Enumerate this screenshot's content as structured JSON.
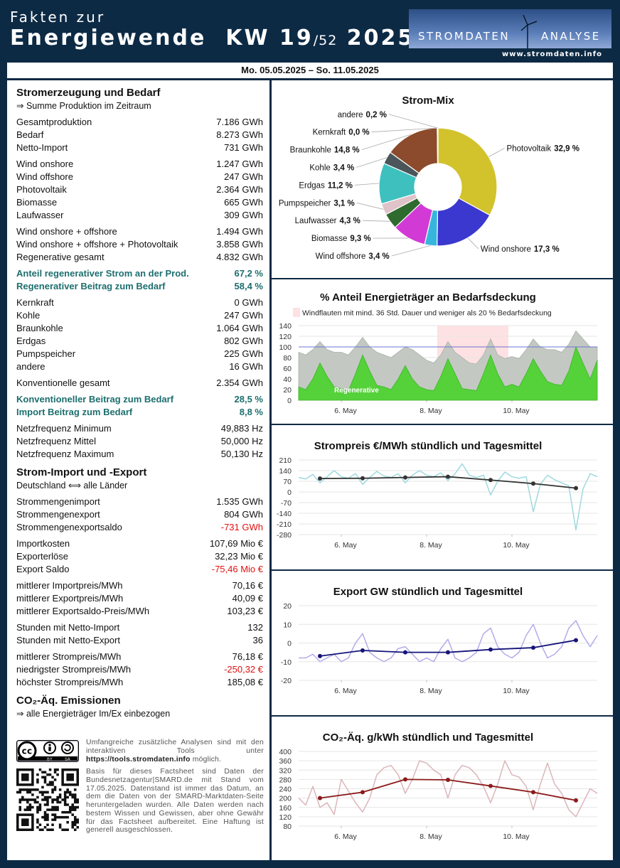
{
  "header": {
    "title_line1": "Fakten zur",
    "title_line2": "Energiewende",
    "week": "KW 19",
    "week_total": "/52",
    "year": "2025",
    "logo_left": "STROMDATEN",
    "logo_right": "ANALYSE",
    "url": "www.stromdaten.info"
  },
  "date_range": "Mo. 05.05.2025 – So. 11.05.2025",
  "left": {
    "sections": [
      {
        "title": "Stromerzeugung und Bedarf",
        "subtitle": "⇒ Summe Produktion im Zeitraum",
        "groups": [
          {
            "rows": [
              {
                "label": "Gesamtproduktion",
                "value": "7.186 GWh"
              },
              {
                "label": "Bedarf",
                "value": "8.273 GWh"
              },
              {
                "label": "Netto-Import",
                "value": "731 GWh"
              }
            ]
          },
          {
            "rows": [
              {
                "label": "Wind onshore",
                "value": "1.247 GWh"
              },
              {
                "label": "Wind offshore",
                "value": "247 GWh"
              },
              {
                "label": "Photovoltaik",
                "value": "2.364 GWh"
              },
              {
                "label": "Biomasse",
                "value": "665 GWh"
              },
              {
                "label": "Laufwasser",
                "value": "309 GWh"
              }
            ]
          },
          {
            "rows": [
              {
                "label": "Wind onshore + offshore",
                "value": "1.494 GWh"
              },
              {
                "label": "Wind onshore + offshore + Photovoltaik",
                "value": "3.858 GWh"
              },
              {
                "label": "Regenerative gesamt",
                "value": "4.832 GWh"
              }
            ]
          },
          {
            "color": "#1d6e6e",
            "rows": [
              {
                "label": "Anteil regenerativer Strom an der Prod.",
                "value": "67,2 %"
              },
              {
                "label": "Regenerativer Beitrag zum Bedarf",
                "value": "58,4 %"
              }
            ]
          },
          {
            "rows": [
              {
                "label": "Kernkraft",
                "value": "0 GWh"
              },
              {
                "label": "Kohle",
                "value": "247 GWh"
              },
              {
                "label": "Braunkohle",
                "value": "1.064 GWh"
              },
              {
                "label": "Erdgas",
                "value": "802 GWh"
              },
              {
                "label": "Pumpspeicher",
                "value": "225 GWh"
              },
              {
                "label": "andere",
                "value": "16 GWh"
              }
            ]
          },
          {
            "rows": [
              {
                "label": "Konventionelle gesamt",
                "value": "2.354 GWh"
              }
            ]
          },
          {
            "color": "#1d6e6e",
            "rows": [
              {
                "label": "Konventioneller Beitrag zum Bedarf",
                "value": "28,5 %"
              },
              {
                "label": "Import Beitrag zum Bedarf",
                "value": "8,8 %"
              }
            ]
          },
          {
            "rows": [
              {
                "label": "Netzfrequenz Minimum",
                "value": "49,883 Hz"
              },
              {
                "label": "Netzfrequenz Mittel",
                "value": "50,000 Hz"
              },
              {
                "label": "Netzfrequenz Maximum",
                "value": "50,130 Hz"
              }
            ]
          }
        ]
      },
      {
        "title": "Strom-Import und -Export",
        "subtitle": "Deutschland ⟺ alle Länder",
        "groups": [
          {
            "rows": [
              {
                "label": "Strommengenimport",
                "value": "1.535 GWh"
              },
              {
                "label": "Strommengenexport",
                "value": "804 GWh"
              },
              {
                "label": "Strommengenexportsaldo",
                "value": "-731 GWh",
                "value_color": "#e01010"
              }
            ]
          },
          {
            "rows": [
              {
                "label": "Importkosten",
                "value": "107,69 Mio €"
              },
              {
                "label": "Exporterlöse",
                "value": "32,23 Mio €"
              },
              {
                "label": "Export Saldo",
                "value": "-75,46 Mio €",
                "value_color": "#e01010"
              }
            ]
          },
          {
            "rows": [
              {
                "label": "mittlerer Importpreis/MWh",
                "value": "70,16 €"
              },
              {
                "label": "mittlerer Exportpreis/MWh",
                "value": "40,09 €"
              },
              {
                "label": "mittlerer Exportsaldo-Preis/MWh",
                "value": "103,23 €"
              }
            ]
          },
          {
            "rows": [
              {
                "label": "Stunden mit Netto-Import",
                "value": "132"
              },
              {
                "label": "Stunden mit Netto-Export",
                "value": "36"
              }
            ]
          },
          {
            "rows": [
              {
                "label": "mittlerer Strompreis/MWh",
                "value": "76,18 €"
              },
              {
                "label": "niedrigster Strompreis/MWh",
                "value": "-250,32 €",
                "value_color": "#e01010"
              },
              {
                "label": "höchster Strompreis/MWh",
                "value": "185,08 €"
              }
            ]
          }
        ]
      },
      {
        "title": "CO₂-Äq. Emissionen",
        "subtitle": "⇒ alle Energieträger Im/Ex einbezogen",
        "groups": []
      }
    ]
  },
  "footer": {
    "license_badge": [
      "BY",
      "SA"
    ],
    "tools_text": "Umfangreiche zusätzliche Analysen sind mit den interaktiven Tools unter",
    "tools_link": "https://tools.stromdaten.info",
    "tools_end": "möglich.",
    "disclaimer": "Basis für dieses Factsheet sind Daten der Bundesnetzagentur|SMARD.de mit Stand vom 17.05.2025. Datenstand ist immer das Datum, an dem die Daten von der SMARD-Marktdaten-Seite heruntergeladen wurden. Alle Daten werden nach bestem Wissen und Gewissen, aber ohne Gewähr für das Factsheet aufbereitet. Eine Haftung ist generell ausgeschlossen."
  },
  "chart_data": [
    {
      "type": "pie",
      "title": "Strom-Mix",
      "categories": [
        "Photovoltaik",
        "Wind onshore",
        "Wind offshore",
        "Biomasse",
        "Laufwasser",
        "Pumpspeicher",
        "Erdgas",
        "Kohle",
        "Braunkohle",
        "Kernkraft",
        "andere"
      ],
      "values": [
        32.9,
        17.3,
        3.4,
        9.3,
        4.3,
        3.1,
        11.2,
        3.4,
        14.8,
        0.0,
        0.2
      ],
      "value_labels": [
        "32,9 %",
        "17,3 %",
        "3,4 %",
        "9,3 %",
        "4,3 %",
        "3,1 %",
        "11,2 %",
        "3,4 %",
        "14,8 %",
        "0,0 %",
        "0,2 %"
      ],
      "colors": [
        "#d2c22c",
        "#3b38cf",
        "#36b6dc",
        "#d23ad6",
        "#2f6a2f",
        "#dfc3c9",
        "#3ec0bf",
        "#4a5659",
        "#8c4b2c",
        "#e3e3a3",
        "#cad9ca"
      ]
    },
    {
      "type": "area",
      "title": "% Anteil Energieträger an Bedarfsdeckung",
      "x": [
        0,
        4,
        8,
        12,
        16,
        20,
        24,
        28,
        32,
        36,
        40,
        44,
        48,
        52,
        56,
        60,
        64,
        68,
        72,
        76,
        80,
        84,
        88,
        92,
        96,
        100,
        104,
        108,
        112,
        116,
        120,
        124,
        128,
        132,
        136,
        140,
        144,
        148,
        152,
        156,
        160,
        164,
        168
      ],
      "series": [
        {
          "color": "#c3c9c2",
          "values": [
            90,
            85,
            95,
            110,
            95,
            90,
            90,
            85,
            100,
            118,
            100,
            90,
            85,
            80,
            90,
            100,
            95,
            85,
            75,
            70,
            85,
            110,
            90,
            80,
            70,
            68,
            85,
            115,
            85,
            78,
            82,
            78,
            95,
            115,
            100,
            95,
            95,
            90,
            105,
            130,
            115,
            100,
            100
          ]
        },
        {
          "name": "Regenerative",
          "color": "#55d13a",
          "values": [
            25,
            20,
            40,
            70,
            45,
            25,
            22,
            18,
            50,
            85,
            55,
            28,
            25,
            20,
            40,
            65,
            40,
            25,
            20,
            18,
            45,
            78,
            50,
            22,
            20,
            18,
            50,
            85,
            50,
            25,
            30,
            25,
            50,
            78,
            55,
            35,
            30,
            28,
            55,
            100,
            70,
            40,
            75
          ]
        }
      ],
      "highlight": {
        "x": [
          78,
          118
        ],
        "color": "#fde1e3",
        "label": "Windflauten mit mind. 36 Std. Dauer und weniger als 20 % Bedarfsdeckung"
      },
      "hline": 100,
      "hline_color": "#6a74d0",
      "xlim": [
        0,
        168
      ],
      "xticks": [
        {
          "value": 24,
          "label": "6. May"
        },
        {
          "value": 72,
          "label": "8. May"
        },
        {
          "value": 120,
          "label": "10. May"
        }
      ],
      "ylim": [
        0,
        140
      ],
      "yticks": [
        0,
        20,
        40,
        60,
        80,
        100,
        120,
        140
      ],
      "grid": true
    },
    {
      "type": "line",
      "title": "Strompreis €/MWh stündlich und Tagesmittel",
      "series": [
        {
          "color": "#9fd9de",
          "x": [
            0,
            4,
            8,
            12,
            16,
            20,
            24,
            28,
            32,
            36,
            40,
            44,
            48,
            52,
            56,
            60,
            64,
            68,
            72,
            76,
            80,
            84,
            88,
            92,
            96,
            100,
            104,
            108,
            112,
            116,
            120,
            124,
            128,
            132,
            136,
            140,
            144,
            148,
            152,
            156,
            160,
            164,
            168
          ],
          "values": [
            95,
            85,
            115,
            60,
            100,
            140,
            100,
            90,
            120,
            50,
            95,
            135,
            105,
            95,
            120,
            60,
            110,
            140,
            110,
            100,
            125,
            75,
            120,
            185,
            110,
            95,
            110,
            -20,
            70,
            130,
            100,
            90,
            100,
            -130,
            50,
            110,
            80,
            60,
            40,
            -250,
            20,
            120,
            100
          ]
        },
        {
          "color": "#333333",
          "markers": true,
          "x": [
            12,
            36,
            60,
            84,
            108,
            132,
            156
          ],
          "values": [
            88,
            90,
            95,
            100,
            78,
            55,
            25
          ]
        }
      ],
      "xlim": [
        0,
        168
      ],
      "xticks": [
        {
          "value": 24,
          "label": "6. May"
        },
        {
          "value": 72,
          "label": "8. May"
        },
        {
          "value": 120,
          "label": "10. May"
        }
      ],
      "ylim": [
        -280,
        210
      ],
      "yticks": [
        -280,
        -210,
        -140,
        -70,
        0,
        70,
        140,
        210
      ],
      "grid": true
    },
    {
      "type": "line",
      "title": "Export GW stündlich und Tagesmittel",
      "series": [
        {
          "color": "#b3abe9",
          "x": [
            0,
            4,
            8,
            12,
            16,
            20,
            24,
            28,
            32,
            36,
            40,
            44,
            48,
            52,
            56,
            60,
            64,
            68,
            72,
            76,
            80,
            84,
            88,
            92,
            96,
            100,
            104,
            108,
            112,
            116,
            120,
            124,
            128,
            132,
            136,
            140,
            144,
            148,
            152,
            156,
            160,
            164,
            168
          ],
          "values": [
            -8,
            -8,
            -6,
            -10,
            -8,
            -6,
            -10,
            -8,
            0,
            5,
            -5,
            -8,
            -10,
            -8,
            -3,
            -2,
            -6,
            -10,
            -8,
            -10,
            -3,
            2,
            -8,
            -10,
            -8,
            -5,
            5,
            8,
            -2,
            -6,
            -8,
            -5,
            4,
            10,
            0,
            -8,
            -6,
            -2,
            8,
            12,
            4,
            -2,
            4
          ]
        },
        {
          "color": "#14147a",
          "markers": true,
          "x": [
            12,
            36,
            60,
            84,
            108,
            132,
            156
          ],
          "values": [
            -7,
            -4,
            -5,
            -5,
            -3.5,
            -2.5,
            1.5
          ]
        }
      ],
      "xlim": [
        0,
        168
      ],
      "xticks": [
        {
          "value": 24,
          "label": "6. May"
        },
        {
          "value": 72,
          "label": "8. May"
        },
        {
          "value": 120,
          "label": "10. May"
        }
      ],
      "ylim": [
        -20,
        20
      ],
      "yticks": [
        -20,
        -10,
        0,
        10,
        20
      ],
      "grid": true
    },
    {
      "type": "line",
      "title": "CO₂-Äq. g/kWh stündlich und Tagesmittel",
      "series": [
        {
          "color": "#dbb6ba",
          "x": [
            0,
            4,
            8,
            12,
            16,
            20,
            24,
            28,
            32,
            36,
            40,
            44,
            48,
            52,
            56,
            60,
            64,
            68,
            72,
            76,
            80,
            84,
            88,
            92,
            96,
            100,
            104,
            108,
            112,
            116,
            120,
            124,
            128,
            132,
            136,
            140,
            144,
            148,
            152,
            156,
            160,
            164,
            168
          ],
          "values": [
            200,
            170,
            250,
            160,
            180,
            130,
            280,
            230,
            180,
            140,
            200,
            300,
            330,
            340,
            300,
            220,
            280,
            360,
            350,
            320,
            300,
            200,
            300,
            340,
            330,
            300,
            250,
            180,
            260,
            360,
            300,
            290,
            250,
            150,
            260,
            350,
            260,
            220,
            150,
            120,
            180,
            240,
            220
          ]
        },
        {
          "color": "#8c1a1a",
          "markers": true,
          "x": [
            12,
            36,
            60,
            84,
            108,
            132,
            156
          ],
          "values": [
            200,
            225,
            280,
            278,
            252,
            225,
            190
          ]
        }
      ],
      "xlim": [
        0,
        168
      ],
      "xticks": [
        {
          "value": 24,
          "label": "6. May"
        },
        {
          "value": 72,
          "label": "8. May"
        },
        {
          "value": 120,
          "label": "10. May"
        }
      ],
      "ylim": [
        80,
        400
      ],
      "yticks": [
        80,
        120,
        160,
        200,
        240,
        280,
        320,
        360,
        400
      ],
      "grid": true
    }
  ]
}
